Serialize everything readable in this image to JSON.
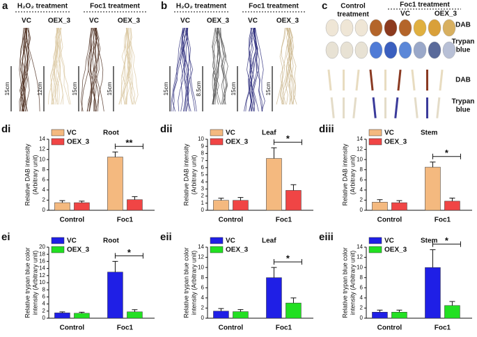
{
  "photo_panels": {
    "a": {
      "label": "a",
      "groups": [
        "H₂O₂ treatment",
        "Foc1 treatment"
      ],
      "samples": [
        "VC",
        "OEX_3",
        "VC",
        "OEX_3"
      ],
      "scales": [
        "15cm",
        "12cm",
        "15cm",
        "15cm"
      ]
    },
    "b": {
      "label": "b",
      "groups": [
        "H₂O₂ treatment",
        "Foc1 treatment"
      ],
      "samples": [
        "VC",
        "OEX_3",
        "VC",
        "OEX_3"
      ],
      "scales": [
        "15cm",
        "8.5cm",
        "15cm",
        "15cm"
      ]
    },
    "c": {
      "label": "c",
      "control": [
        "Control",
        "treatment"
      ],
      "group": "Foc1 treatment",
      "samples": [
        "VC",
        "OEX_3"
      ],
      "rows": [
        [
          "DAB"
        ],
        [
          "Trypan",
          "blue"
        ],
        [
          "DAB"
        ],
        [
          "Trypan",
          "blue"
        ]
      ]
    }
  },
  "chart_data": [
    {
      "type": "bar",
      "panel": "di",
      "annotation": "Root",
      "ylabel": [
        "Relative DAB intensity",
        "(Arbitrary unit)"
      ],
      "categories": [
        "Control",
        "Foc1"
      ],
      "series": [
        {
          "name": "VC",
          "color": "#f4b97f",
          "values": [
            1.5,
            10.5
          ],
          "errors": [
            0.4,
            1.0
          ]
        },
        {
          "name": "OEX_3",
          "color": "#f04545",
          "values": [
            1.5,
            2.1
          ],
          "errors": [
            0.3,
            0.6
          ]
        }
      ],
      "ylim": [
        0,
        14
      ],
      "yticks": [
        0,
        2,
        4,
        6,
        8,
        10,
        12,
        14
      ],
      "significance": "**"
    },
    {
      "type": "bar",
      "panel": "dii",
      "annotation": "Leaf",
      "ylabel": [
        "Relative DAB intensity",
        "(Arbitrary unit)"
      ],
      "categories": [
        "Control",
        "Foc1"
      ],
      "series": [
        {
          "name": "VC",
          "color": "#f4b97f",
          "values": [
            1.4,
            7.3
          ],
          "errors": [
            0.3,
            1.5
          ]
        },
        {
          "name": "OEX_3",
          "color": "#f04545",
          "values": [
            1.4,
            2.8
          ],
          "errors": [
            0.4,
            0.8
          ]
        }
      ],
      "ylim": [
        0,
        10
      ],
      "yticks": [
        0,
        1,
        2,
        3,
        4,
        5,
        6,
        7,
        8,
        9,
        10
      ],
      "significance": "*"
    },
    {
      "type": "bar",
      "panel": "diii",
      "annotation": "Stem",
      "ylabel": [
        "Relative DAB intensity",
        "(Arbitrary unit)"
      ],
      "categories": [
        "Control",
        "Foc1"
      ],
      "series": [
        {
          "name": "VC",
          "color": "#f4b97f",
          "values": [
            1.6,
            8.5
          ],
          "errors": [
            0.5,
            1.0
          ]
        },
        {
          "name": "OEX_3",
          "color": "#f04545",
          "values": [
            1.5,
            1.8
          ],
          "errors": [
            0.4,
            0.6
          ]
        }
      ],
      "ylim": [
        0,
        14
      ],
      "yticks": [
        0,
        2,
        4,
        6,
        8,
        10,
        12,
        14
      ],
      "significance": "*"
    },
    {
      "type": "bar",
      "panel": "ei",
      "annotation": "Root",
      "ylabel": [
        "Relative trypan blue color",
        "intensity (Arbitrary unit)"
      ],
      "categories": [
        "Control",
        "Foc1"
      ],
      "series": [
        {
          "name": "VC",
          "color": "#1f1fe6",
          "values": [
            1.5,
            13
          ],
          "errors": [
            0.3,
            3
          ]
        },
        {
          "name": "OEX_3",
          "color": "#22e022",
          "values": [
            1.4,
            1.8
          ],
          "errors": [
            0.3,
            0.6
          ]
        }
      ],
      "ylim": [
        0,
        20
      ],
      "yticks": [
        0,
        2,
        4,
        6,
        8,
        10,
        12,
        14,
        16,
        18,
        20
      ],
      "significance": "*"
    },
    {
      "type": "bar",
      "panel": "eii",
      "annotation": "Leaf",
      "ylabel": [
        "Relative trypan blue color",
        "intensity (Arbitrary unit)"
      ],
      "categories": [
        "Control",
        "Foc1"
      ],
      "series": [
        {
          "name": "VC",
          "color": "#1f1fe6",
          "values": [
            1.4,
            8
          ],
          "errors": [
            0.5,
            2
          ]
        },
        {
          "name": "OEX_3",
          "color": "#22e022",
          "values": [
            1.3,
            3
          ],
          "errors": [
            0.4,
            1
          ]
        }
      ],
      "ylim": [
        0,
        14
      ],
      "yticks": [
        0,
        2,
        4,
        6,
        8,
        10,
        12,
        14
      ],
      "significance": "*"
    },
    {
      "type": "bar",
      "panel": "eiii",
      "annotation": "Stem",
      "ylabel": [
        "Relative trypan blue color",
        "intensity (Arbitrary unit)"
      ],
      "categories": [
        "Control",
        "Foc1"
      ],
      "series": [
        {
          "name": "VC",
          "color": "#1f1fe6",
          "values": [
            1.2,
            10
          ],
          "errors": [
            0.4,
            3.5
          ]
        },
        {
          "name": "OEX_3",
          "color": "#22e022",
          "values": [
            1.2,
            2.5
          ],
          "errors": [
            0.4,
            0.8
          ]
        }
      ],
      "ylim": [
        0,
        14
      ],
      "yticks": [
        0,
        2,
        4,
        6,
        8,
        10,
        12,
        14
      ],
      "significance": "*"
    }
  ]
}
